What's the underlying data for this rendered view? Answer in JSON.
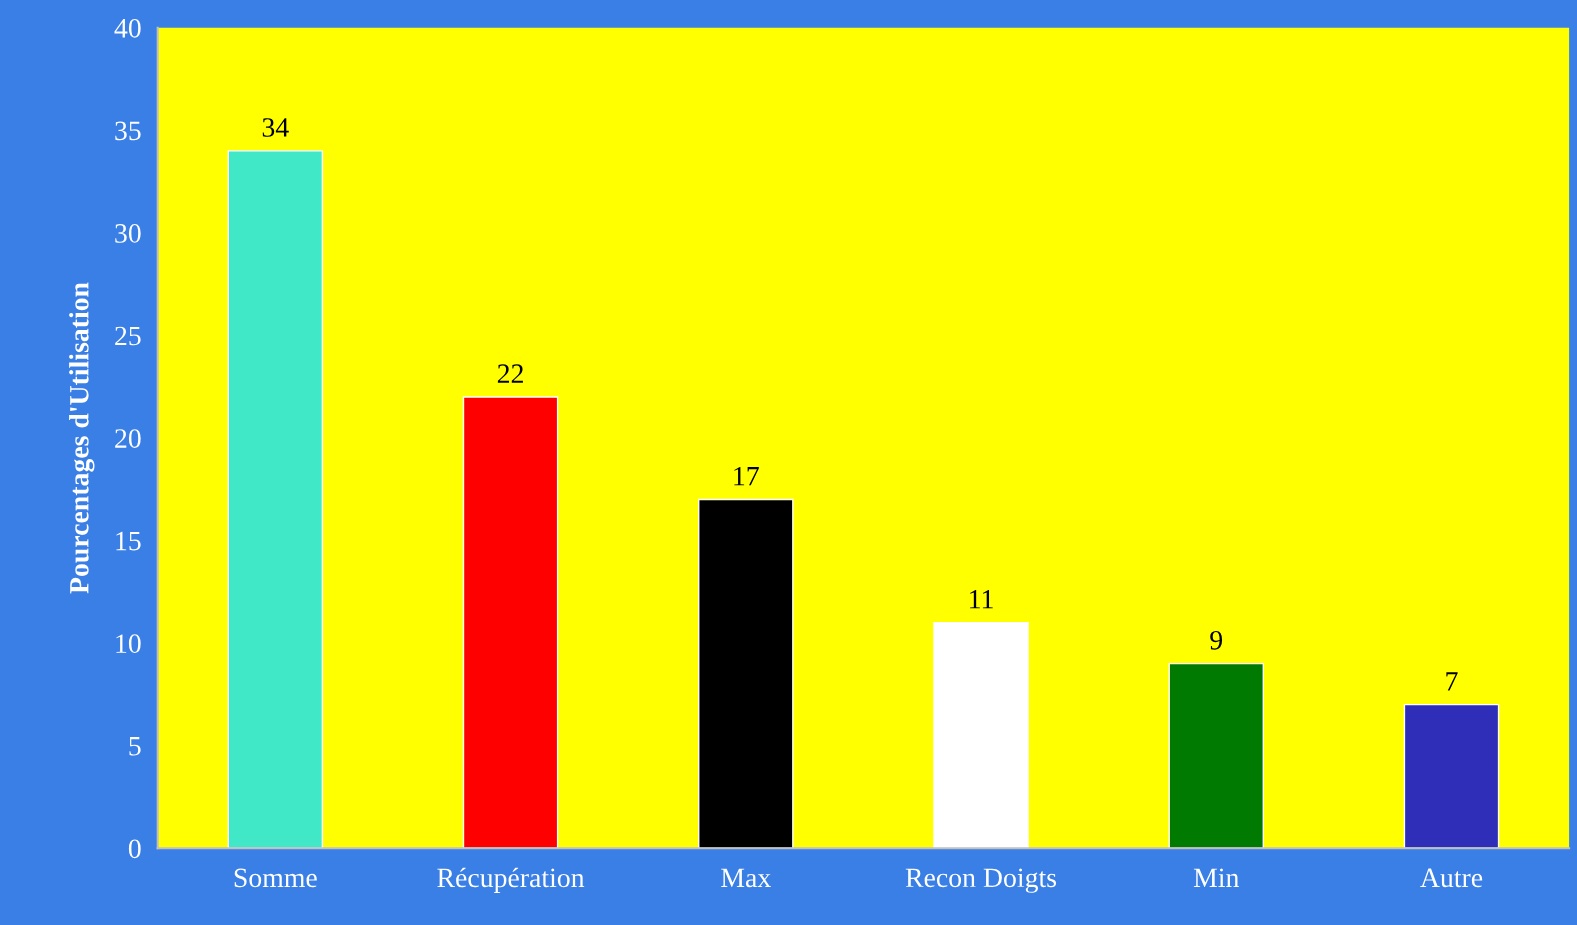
{
  "chart_data": {
    "type": "bar",
    "ylabel": "Pourcentages d'Utilisation",
    "categories": [
      "Somme",
      "Récupération",
      "Max",
      "Recon Doigts",
      "Min",
      "Autre"
    ],
    "values": [
      34,
      22,
      17,
      11,
      9,
      7
    ],
    "colors": [
      "#40e8c8",
      "#ff0000",
      "#000000",
      "#ffffff",
      "#007a00",
      "#2e2eb8"
    ],
    "ylim": [
      0,
      40
    ],
    "yticks": [
      0,
      5,
      10,
      15,
      20,
      25,
      30,
      35,
      40
    ],
    "data_labels": true,
    "grid": false,
    "legend": false
  }
}
